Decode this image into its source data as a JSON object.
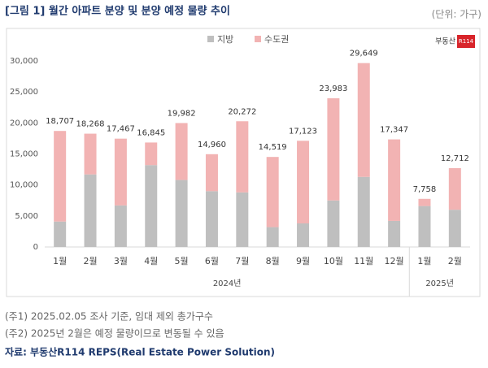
{
  "chart_data": {
    "type": "bar",
    "stacked": true,
    "title": "[그림 1] 월간 아파트 분양 및 분양 예정 물량 추이",
    "unit": "(단위: 가구)",
    "logo": {
      "text": "부동산",
      "badge": "R114"
    },
    "categories": [
      "1월",
      "2월",
      "3월",
      "4월",
      "5월",
      "6월",
      "7월",
      "8월",
      "9월",
      "10월",
      "11월",
      "12월",
      "1월",
      "2월"
    ],
    "groups": [
      {
        "label": "2024년",
        "count": 12
      },
      {
        "label": "2025년",
        "count": 2
      }
    ],
    "series": [
      {
        "name": "지방",
        "color": "#bfbfbf",
        "values": [
          4100,
          11700,
          6700,
          13200,
          10800,
          9000,
          8800,
          3200,
          3800,
          7500,
          11300,
          4200,
          6600,
          6000
        ]
      },
      {
        "name": "수도권",
        "color": "#f2b3b3",
        "values": [
          14607,
          6568,
          10767,
          3645,
          9182,
          5960,
          11472,
          11319,
          13323,
          16483,
          18349,
          13147,
          1158,
          6712
        ]
      }
    ],
    "totals": [
      18707,
      18268,
      17467,
      16845,
      19982,
      14960,
      20272,
      14519,
      17123,
      23983,
      29649,
      17347,
      7758,
      12712
    ],
    "total_labels": [
      "18,707",
      "18,268",
      "17,467",
      "16,845",
      "19,982",
      "14,960",
      "20,272",
      "14,519",
      "17,123",
      "23,983",
      "29,649",
      "17,347",
      "7,758",
      "12,712"
    ],
    "ylim": [
      0,
      30000
    ],
    "yticks": [
      0,
      {
        "value": 5000,
        "label": "5,000"
      },
      {
        "value": 10000,
        "label": "10,000"
      },
      {
        "value": 15000,
        "label": "15,000"
      },
      {
        "value": 20000,
        "label": "20,000"
      },
      {
        "value": 25000,
        "label": "25,000"
      },
      {
        "value": 30000,
        "label": "30,000"
      }
    ],
    "notes": [
      "(주1) 2025.02.05 조사 기준, 임대 제외 총가구수",
      "(주2) 2025년 2월은 예정 물량이므로 변동될 수 있음"
    ],
    "source": "자료: 부동산R114 REPS(Real Estate Power Solution)"
  }
}
